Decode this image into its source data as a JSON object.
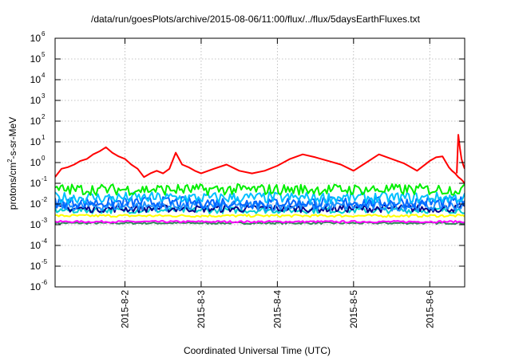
{
  "chart_data": {
    "type": "line",
    "title": "/data/run/goesPlots/archive/2015-08-06/11:00/flux/../flux/5daysEarthFluxes.txt",
    "xlabel": "Coordinated Universal Time (UTC)",
    "ylabel": "protons/cm²-s-sr-MeV",
    "ylabel_parts": {
      "pre": "protons/cm",
      "sup": "2",
      "post": "-s-sr-MeV"
    },
    "yscale": "log",
    "ylim": [
      1e-06,
      1000000.0
    ],
    "xlim": [
      "2015-08-01 02:00",
      "2015-08-06 11:00"
    ],
    "grid": true,
    "y_ticks": [
      {
        "value": 1e-06,
        "base": "10",
        "exp": "-6"
      },
      {
        "value": 1e-05,
        "base": "10",
        "exp": "-5"
      },
      {
        "value": 0.0001,
        "base": "10",
        "exp": "-4"
      },
      {
        "value": 0.001,
        "base": "10",
        "exp": "-3"
      },
      {
        "value": 0.01,
        "base": "10",
        "exp": "-2"
      },
      {
        "value": 0.1,
        "base": "10",
        "exp": "-1"
      },
      {
        "value": 1.0,
        "base": "10",
        "exp": "0"
      },
      {
        "value": 10.0,
        "base": "10",
        "exp": "1"
      },
      {
        "value": 100.0,
        "base": "10",
        "exp": "2"
      },
      {
        "value": 1000.0,
        "base": "10",
        "exp": "3"
      },
      {
        "value": 10000.0,
        "base": "10",
        "exp": "4"
      },
      {
        "value": 100000.0,
        "base": "10",
        "exp": "5"
      },
      {
        "value": 1000000.0,
        "base": "10",
        "exp": "6"
      }
    ],
    "x_ticks": [
      {
        "value": "2015-08-02 00:00",
        "label": "2015-8-2"
      },
      {
        "value": "2015-08-03 00:00",
        "label": "2015-8-3"
      },
      {
        "value": "2015-08-04 00:00",
        "label": "2015-8-4"
      },
      {
        "value": "2015-08-05 00:00",
        "label": "2015-8-5"
      },
      {
        "value": "2015-08-06 00:00",
        "label": "2015-8-6"
      }
    ],
    "series": [
      {
        "color": "#ff0000",
        "x": [
          "2015-08-01 02:00",
          "2015-08-01 04:00",
          "2015-08-01 06:00",
          "2015-08-01 08:00",
          "2015-08-01 10:00",
          "2015-08-01 12:00",
          "2015-08-01 14:00",
          "2015-08-01 16:00",
          "2015-08-01 18:00",
          "2015-08-01 20:00",
          "2015-08-01 22:00",
          "2015-08-02 00:00",
          "2015-08-02 02:00",
          "2015-08-02 04:00",
          "2015-08-02 06:00",
          "2015-08-02 08:00",
          "2015-08-02 10:00",
          "2015-08-02 12:00",
          "2015-08-02 14:00",
          "2015-08-02 16:00",
          "2015-08-02 18:00",
          "2015-08-02 20:00",
          "2015-08-02 22:00",
          "2015-08-03 00:00",
          "2015-08-03 04:00",
          "2015-08-03 08:00",
          "2015-08-03 12:00",
          "2015-08-03 16:00",
          "2015-08-03 20:00",
          "2015-08-04 00:00",
          "2015-08-04 04:00",
          "2015-08-04 08:00",
          "2015-08-04 12:00",
          "2015-08-04 16:00",
          "2015-08-04 20:00",
          "2015-08-05 00:00",
          "2015-08-05 04:00",
          "2015-08-05 08:00",
          "2015-08-05 12:00",
          "2015-08-05 16:00",
          "2015-08-05 20:00",
          "2015-08-06 00:00",
          "2015-08-06 02:00",
          "2015-08-06 04:00",
          "2015-08-06 06:00",
          "2015-08-06 07:00",
          "2015-08-06 08:00",
          "2015-08-06 09:00",
          "2015-08-06 10:00",
          "2015-08-06 11:00"
        ],
        "values": [
          0.2,
          0.5,
          0.6,
          0.8,
          1.2,
          1.5,
          2.5,
          3.5,
          5.5,
          3.0,
          2.0,
          1.5,
          0.8,
          0.5,
          0.2,
          0.3,
          0.4,
          0.3,
          0.5,
          3.0,
          0.8,
          0.6,
          0.4,
          0.3,
          0.5,
          0.8,
          0.4,
          0.3,
          0.4,
          0.7,
          1.5,
          2.5,
          1.8,
          1.2,
          0.8,
          0.4,
          1.0,
          2.5,
          1.5,
          0.9,
          0.4,
          1.2,
          1.8,
          2.0,
          0.6,
          0.4,
          0.3,
          0.2,
          0.15,
          0.1
        ]
      },
      {
        "color": "#ff0000",
        "x": [
          "2015-08-06 08:30",
          "2015-08-06 09:00",
          "2015-08-06 09:30",
          "2015-08-06 10:00",
          "2015-08-06 10:30",
          "2015-08-06 11:00"
        ],
        "values": [
          0.3,
          22,
          5,
          1.5,
          0.8,
          0.5
        ]
      },
      {
        "color": "#00ee00",
        "base": 0.05,
        "spread": 0.9
      },
      {
        "color": "#00bfff",
        "base": 0.02,
        "spread": 0.9
      },
      {
        "color": "#0066ff",
        "base": 0.012,
        "spread": 0.9
      },
      {
        "color": "#1e90ff",
        "base": 0.008,
        "spread": 0.8
      },
      {
        "color": "#00008b",
        "base": 0.006,
        "spread": 0.6
      },
      {
        "color": "#00ced1",
        "base": 0.005,
        "spread": 0.5
      },
      {
        "color": "#ffff00",
        "base": 0.0027,
        "spread": 0.2
      },
      {
        "color": "#ff00ff",
        "base": 0.0014,
        "spread": 0.15
      },
      {
        "color": "#2e8b57",
        "base": 0.0012,
        "spread": 0.15
      }
    ]
  }
}
